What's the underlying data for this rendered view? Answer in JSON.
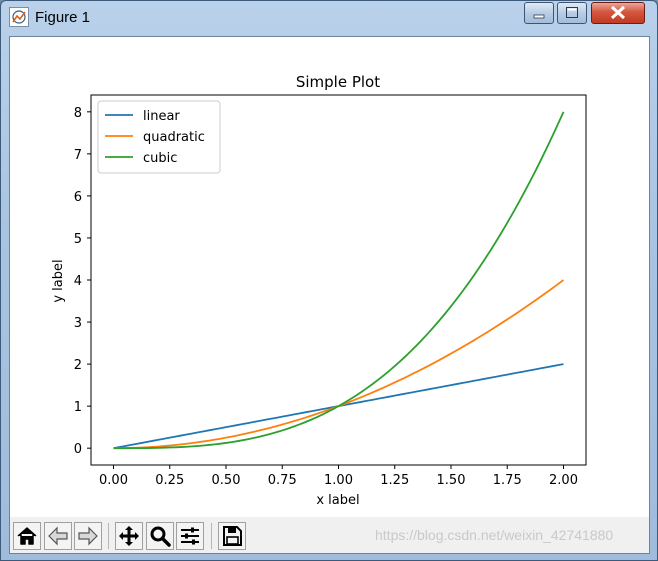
{
  "window": {
    "title": "Figure 1",
    "controls": [
      "minimize",
      "maximize",
      "close"
    ]
  },
  "toolbar": {
    "buttons": [
      {
        "name": "home",
        "icon": "home-icon"
      },
      {
        "name": "back",
        "icon": "back-arrow-icon"
      },
      {
        "name": "forward",
        "icon": "forward-arrow-icon"
      },
      {
        "name": "pan",
        "icon": "move-icon"
      },
      {
        "name": "zoom",
        "icon": "zoom-icon"
      },
      {
        "name": "configure-subplots",
        "icon": "sliders-icon"
      },
      {
        "name": "save",
        "icon": "save-icon"
      }
    ],
    "watermark": "https://blog.csdn.net/weixin_42741880"
  },
  "chart_data": {
    "type": "line",
    "title": "Simple Plot",
    "xlabel": "x label",
    "ylabel": "y label",
    "xlim": [
      -0.1,
      2.1
    ],
    "ylim": [
      -0.4,
      8.4
    ],
    "xticks": [
      "0.00",
      "0.25",
      "0.50",
      "0.75",
      "1.00",
      "1.25",
      "1.50",
      "1.75",
      "2.00"
    ],
    "yticks": [
      "0",
      "1",
      "2",
      "3",
      "4",
      "5",
      "6",
      "7",
      "8"
    ],
    "legend_position": "upper-left",
    "grid": false,
    "series": [
      {
        "name": "linear",
        "color": "#1f77b4",
        "x": [
          0,
          0.25,
          0.5,
          0.75,
          1.0,
          1.25,
          1.5,
          1.75,
          2.0
        ],
        "values": [
          0,
          0.25,
          0.5,
          0.75,
          1.0,
          1.25,
          1.5,
          1.75,
          2.0
        ]
      },
      {
        "name": "quadratic",
        "color": "#ff7f0e",
        "x": [
          0,
          0.25,
          0.5,
          0.75,
          1.0,
          1.25,
          1.5,
          1.75,
          2.0
        ],
        "values": [
          0,
          0.0625,
          0.25,
          0.5625,
          1.0,
          1.5625,
          2.25,
          3.0625,
          4.0
        ]
      },
      {
        "name": "cubic",
        "color": "#2ca02c",
        "x": [
          0,
          0.25,
          0.5,
          0.75,
          1.0,
          1.25,
          1.5,
          1.75,
          2.0
        ],
        "values": [
          0,
          0.015625,
          0.125,
          0.421875,
          1.0,
          1.953125,
          3.375,
          5.359375,
          8.0
        ]
      }
    ]
  }
}
